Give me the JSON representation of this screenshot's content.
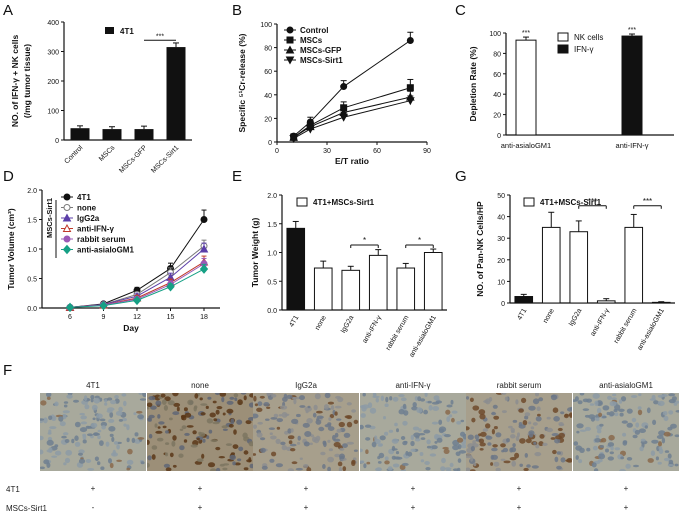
{
  "panels": {
    "A": "A",
    "B": "B",
    "C": "C",
    "D": "D",
    "E": "E",
    "G": "G",
    "F": "F"
  },
  "colors": {
    "ink": "#111111",
    "bar_fill": "#111111",
    "bar_open": "#ffffff",
    "grid": "#111111"
  },
  "chart_data": [
    {
      "id": "A",
      "type": "bar",
      "ylabel_line1": "NO. of IFN-γ + NK cells",
      "ylabel_line2": "(/mg tumor tissue)",
      "ylim": [
        0,
        400
      ],
      "yticks": [
        0,
        100,
        200,
        300,
        400
      ],
      "categories": [
        "Control",
        "MSCs",
        "MSCs-GFP",
        "MSCs-Sirt1"
      ],
      "values": [
        40,
        37,
        37,
        315
      ],
      "errors": [
        8,
        8,
        10,
        14
      ],
      "legend": [
        "4T1"
      ],
      "significance": [
        {
          "from": 2,
          "to": 3,
          "label": "***"
        }
      ]
    },
    {
      "id": "B",
      "type": "line",
      "ylabel": "Specific ⁵¹Cr-release (%)",
      "xlabel": "E/T ratio",
      "xlim": [
        0,
        90
      ],
      "xticks": [
        0,
        30,
        60,
        90
      ],
      "ylim": [
        0,
        100
      ],
      "yticks": [
        0,
        20,
        40,
        60,
        80,
        100
      ],
      "x": [
        10,
        20,
        40,
        80
      ],
      "series": [
        {
          "name": "Control",
          "marker": "circle",
          "values": [
            5,
            17,
            47,
            86
          ],
          "errors": [
            2,
            4,
            5,
            7
          ]
        },
        {
          "name": "MSCs",
          "marker": "square",
          "values": [
            4,
            14,
            29,
            46
          ],
          "errors": [
            2,
            4,
            5,
            7
          ]
        },
        {
          "name": "MSCs-GFP",
          "marker": "triangle-up",
          "values": [
            4,
            13,
            25,
            38
          ],
          "errors": [
            2,
            4,
            5,
            5
          ]
        },
        {
          "name": "MSCs-Sirt1",
          "marker": "triangle-down",
          "values": [
            3,
            11,
            21,
            35
          ],
          "errors": [
            2,
            3,
            4,
            4
          ]
        }
      ]
    },
    {
      "id": "C",
      "type": "bar",
      "ylabel": "Depletion Rate (%)",
      "ylim": [
        0,
        100
      ],
      "yticks": [
        0,
        20,
        40,
        60,
        80,
        100
      ],
      "categories": [
        "anti-asialoGM1",
        "anti-IFN-γ"
      ],
      "series": [
        {
          "name": "NK cells",
          "fill": "open",
          "values": [
            93,
            0
          ],
          "errors": [
            3,
            0
          ]
        },
        {
          "name": "IFN-γ",
          "fill": "solid",
          "values": [
            0,
            97
          ],
          "errors": [
            0,
            2
          ]
        }
      ],
      "annotations": [
        "***",
        "***"
      ]
    },
    {
      "id": "D",
      "type": "line",
      "ylabel": "Tumor Volume (cm³)",
      "xlabel": "Day",
      "ylim": [
        0,
        2.0
      ],
      "yticks": [
        0.0,
        0.5,
        1.0,
        1.5,
        2.0
      ],
      "ytick_labels": [
        "0.0",
        "0.5",
        "1.0",
        "1.5",
        "2.0"
      ],
      "x": [
        6,
        9,
        12,
        15,
        18
      ],
      "group_label": "MSCs-Sirt1",
      "series": [
        {
          "name": "4T1",
          "marker": "circle",
          "color": "#111111",
          "values": [
            0.01,
            0.07,
            0.3,
            0.67,
            1.5
          ],
          "errors": [
            0.01,
            0.02,
            0.05,
            0.09,
            0.16
          ]
        },
        {
          "name": "none",
          "marker": "circle-open",
          "color": "#7a7a7a",
          "values": [
            0.01,
            0.06,
            0.23,
            0.6,
            1.05
          ],
          "errors": [
            0.01,
            0.02,
            0.04,
            0.08,
            0.1
          ]
        },
        {
          "name": "IgG2a",
          "marker": "triangle-up",
          "color": "#5b3ea8",
          "values": [
            0.01,
            0.06,
            0.2,
            0.52,
            1.0
          ],
          "errors": [
            0.01,
            0.02,
            0.04,
            0.07,
            0.1
          ]
        },
        {
          "name": "anti-IFN-γ",
          "marker": "triangle-up-open",
          "color": "#c0392b",
          "values": [
            0.01,
            0.05,
            0.17,
            0.43,
            0.78
          ],
          "errors": [
            0.01,
            0.02,
            0.04,
            0.06,
            0.1
          ]
        },
        {
          "name": "rabbit serum",
          "marker": "circle",
          "color": "#9b59b6",
          "values": [
            0.01,
            0.05,
            0.15,
            0.4,
            0.75
          ],
          "errors": [
            0.01,
            0.02,
            0.03,
            0.06,
            0.09
          ]
        },
        {
          "name": "anti-asialoGM1",
          "marker": "diamond",
          "color": "#16a085",
          "values": [
            0.01,
            0.04,
            0.13,
            0.36,
            0.66
          ],
          "errors": [
            0.01,
            0.02,
            0.03,
            0.05,
            0.08
          ]
        }
      ]
    },
    {
      "id": "E",
      "type": "bar",
      "ylabel": "Tumor Weight (g)",
      "ylim": [
        0,
        2.0
      ],
      "yticks": [
        0.0,
        0.5,
        1.0,
        1.5,
        2.0
      ],
      "ytick_labels": [
        "0.0",
        "0.5",
        "1.0",
        "1.5",
        "2.0"
      ],
      "categories": [
        "4T1",
        "none",
        "IgG2a",
        "anti-IFN-γ",
        "rabbit serum",
        "anti-asialoGM1"
      ],
      "values": [
        1.42,
        0.73,
        0.69,
        0.95,
        0.73,
        1.0
      ],
      "errors": [
        0.12,
        0.12,
        0.07,
        0.1,
        0.08,
        0.06
      ],
      "fills": [
        "solid",
        "open",
        "open",
        "open",
        "open",
        "open"
      ],
      "legend": [
        "4T1+MSCs-Sirt1"
      ],
      "significance": [
        {
          "from": 2,
          "to": 3,
          "label": "*"
        },
        {
          "from": 4,
          "to": 5,
          "label": "*"
        }
      ]
    },
    {
      "id": "G",
      "type": "bar",
      "ylabel": "NO. of Pan-NK Cells/HP",
      "ylim": [
        0,
        50
      ],
      "yticks": [
        0,
        10,
        20,
        30,
        40,
        50
      ],
      "categories": [
        "4T1",
        "none",
        "IgG2a",
        "anti-IFN-γ",
        "rabbit serum",
        "anti-asialoGM1"
      ],
      "values": [
        3,
        35,
        33,
        1,
        35,
        0.3
      ],
      "errors": [
        1,
        7,
        5,
        1,
        6,
        0.3
      ],
      "fills": [
        "solid",
        "open",
        "open",
        "open",
        "open",
        "open"
      ],
      "legend": [
        "4T1+MSCs-Sirt1"
      ],
      "significance": [
        {
          "from": 2,
          "to": 3,
          "label": "***"
        },
        {
          "from": 4,
          "to": 5,
          "label": "***"
        }
      ]
    }
  ],
  "panelF": {
    "images": [
      {
        "label": "4T1",
        "tone": "light"
      },
      {
        "label": "none",
        "tone": "dark"
      },
      {
        "label": "IgG2a",
        "tone": "medium"
      },
      {
        "label": "anti-IFN-γ",
        "tone": "light"
      },
      {
        "label": "rabbit serum",
        "tone": "medium"
      },
      {
        "label": "anti-asialoGM1",
        "tone": "light"
      }
    ],
    "rows": [
      {
        "label": "4T1",
        "marks": [
          "+",
          "+",
          "+",
          "+",
          "+",
          "+"
        ]
      },
      {
        "label": "MSCs-Sirt1",
        "marks": [
          "-",
          "+",
          "+",
          "+",
          "+",
          "+"
        ]
      }
    ]
  }
}
